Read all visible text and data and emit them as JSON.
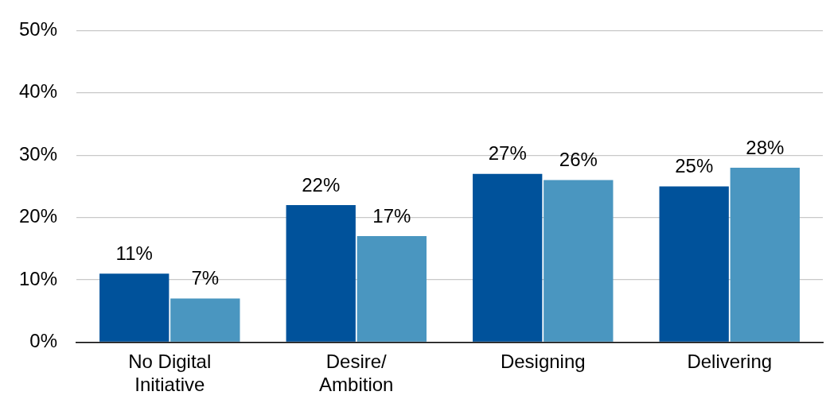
{
  "chart_data": {
    "type": "bar",
    "categories": [
      "No Digital Initiative",
      "Desire/ Ambition",
      "Designing",
      "Delivering"
    ],
    "series": [
      {
        "color": "#00529b",
        "values": [
          11,
          22,
          27,
          25
        ],
        "value_labels": [
          "11%",
          "22%",
          "27%",
          "25%"
        ]
      },
      {
        "color": "#4a96c0",
        "values": [
          7,
          17,
          26,
          28
        ],
        "value_labels": [
          "7%",
          "17%",
          "26%",
          "28%"
        ]
      }
    ],
    "ylim": [
      0,
      50
    ],
    "yticks": [
      {
        "value": 0,
        "label": "0%"
      },
      {
        "value": 10,
        "label": "10%"
      },
      {
        "value": 20,
        "label": "20%"
      },
      {
        "value": 30,
        "label": "30%"
      },
      {
        "value": 40,
        "label": "40%"
      },
      {
        "value": 50,
        "label": "50%"
      }
    ],
    "grid": "y",
    "legend": false
  }
}
